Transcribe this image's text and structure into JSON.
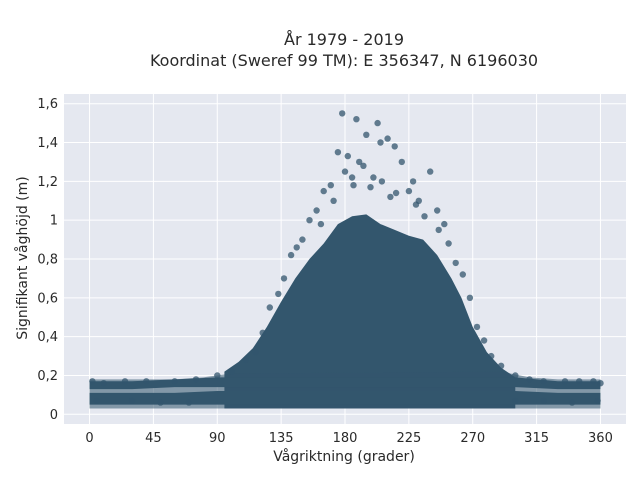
{
  "chart_data": {
    "type": "scatter",
    "title_line1": "År 1979 - 2019",
    "title_line2": "Koordinat (Sweref 99 TM): E 356347, N 6196030",
    "xlabel": "Vågriktning (grader)",
    "ylabel": "Signifikant våghöjd (m)",
    "xlim": [
      -18,
      378
    ],
    "ylim": [
      -0.05,
      1.65
    ],
    "xticks": [
      0,
      45,
      90,
      135,
      180,
      225,
      270,
      315,
      360
    ],
    "xtick_labels": [
      "0",
      "45",
      "90",
      "135",
      "180",
      "225",
      "270",
      "315",
      "360"
    ],
    "yticks": [
      0,
      0.2,
      0.4,
      0.6,
      0.8,
      1.0,
      1.2,
      1.4,
      1.6
    ],
    "ytick_labels": [
      "0",
      "0,2",
      "0,4",
      "0,6",
      "0,8",
      "1",
      "1,2",
      "1,4",
      "1,6"
    ],
    "grid": true,
    "marker_color": "#33566d",
    "background_color": "#e5e8f0",
    "x": [
      178,
      188,
      203,
      195,
      210,
      205,
      215,
      175,
      182,
      220,
      193,
      240,
      185,
      228,
      170,
      165,
      232,
      212,
      198,
      245,
      160,
      250,
      155,
      180,
      225,
      200,
      190,
      230,
      172,
      206,
      216,
      236,
      186,
      246,
      163,
      253,
      146,
      142,
      150,
      258,
      263,
      268,
      137,
      133,
      127,
      273,
      278,
      283,
      122,
      117,
      2,
      10,
      25,
      40,
      60,
      75,
      90,
      100,
      110,
      290,
      300,
      310,
      320,
      335,
      345,
      355,
      360,
      5,
      30,
      50,
      70,
      300,
      320,
      340,
      358
    ],
    "y": [
      1.55,
      1.52,
      1.5,
      1.44,
      1.42,
      1.4,
      1.38,
      1.35,
      1.33,
      1.3,
      1.28,
      1.25,
      1.22,
      1.2,
      1.18,
      1.15,
      1.1,
      1.12,
      1.17,
      1.05,
      1.05,
      0.98,
      1.0,
      1.25,
      1.15,
      1.22,
      1.3,
      1.08,
      1.1,
      1.2,
      1.14,
      1.02,
      1.18,
      0.95,
      0.98,
      0.88,
      0.86,
      0.82,
      0.9,
      0.78,
      0.72,
      0.6,
      0.7,
      0.62,
      0.55,
      0.45,
      0.38,
      0.3,
      0.42,
      0.32,
      0.17,
      0.16,
      0.17,
      0.17,
      0.17,
      0.18,
      0.2,
      0.22,
      0.28,
      0.25,
      0.2,
      0.18,
      0.17,
      0.17,
      0.17,
      0.17,
      0.16,
      0.07,
      0.07,
      0.06,
      0.06,
      0.07,
      0.07,
      0.06,
      0.07
    ]
  }
}
